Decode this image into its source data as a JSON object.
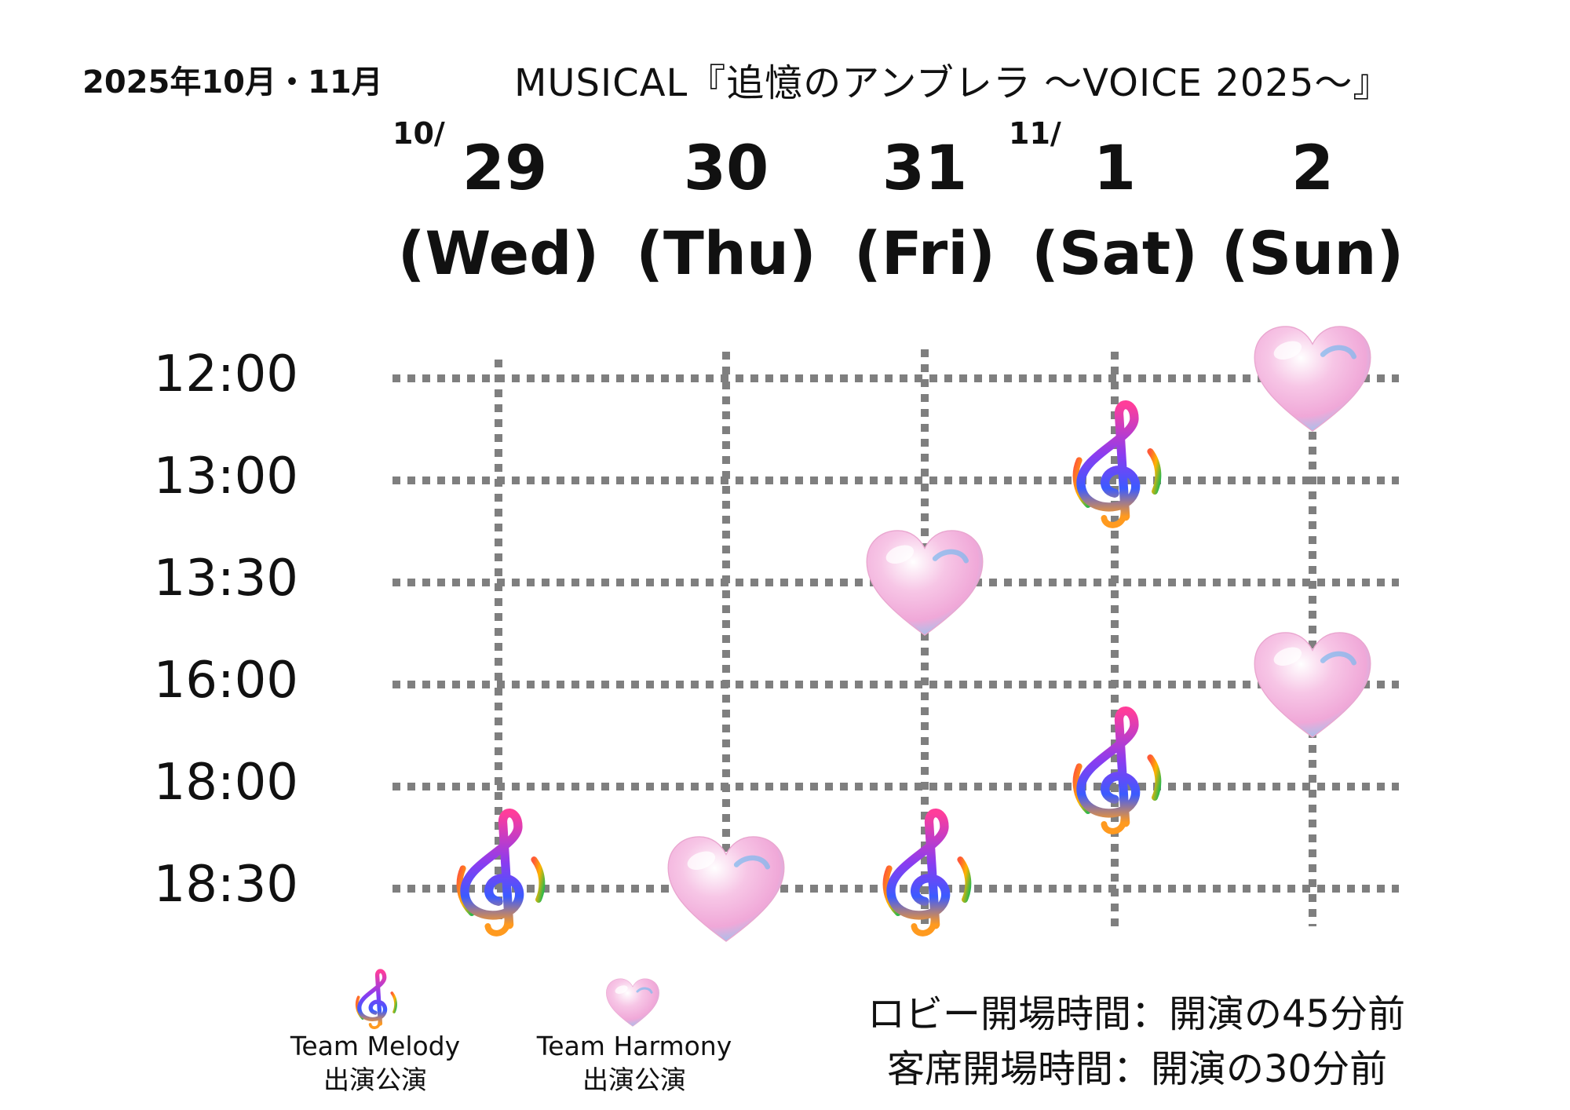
{
  "header": {
    "period": "2025年10月・11月",
    "title": "MUSICAL『追憶のアンブレラ 〜VOICE 2025〜』"
  },
  "days": [
    {
      "month": "10/",
      "day": "29",
      "weekday": "(Wed)"
    },
    {
      "month": "",
      "day": "30",
      "weekday": "(Thu)"
    },
    {
      "month": "",
      "day": "31",
      "weekday": "(Fri)"
    },
    {
      "month": "11/",
      "day": "1",
      "weekday": "(Sat)"
    },
    {
      "month": "",
      "day": "2",
      "weekday": "(Sun)"
    }
  ],
  "times": [
    "12:00",
    "13:00",
    "13:30",
    "16:00",
    "18:00",
    "18:30"
  ],
  "performances": [
    {
      "day": "(Wed)",
      "time": "18:30",
      "team": "melody"
    },
    {
      "day": "(Thu)",
      "time": "18:30",
      "team": "harmony"
    },
    {
      "day": "(Fri)",
      "time": "13:30",
      "team": "harmony"
    },
    {
      "day": "(Fri)",
      "time": "18:30",
      "team": "melody"
    },
    {
      "day": "(Sat)",
      "time": "13:00",
      "team": "melody"
    },
    {
      "day": "(Sat)",
      "time": "18:00",
      "team": "melody"
    },
    {
      "day": "(Sun)",
      "time": "12:00",
      "team": "harmony"
    },
    {
      "day": "(Sun)",
      "time": "16:00",
      "team": "harmony"
    }
  ],
  "legend": {
    "melody": {
      "icon": "treble-clef-icon",
      "label": "Team Melody",
      "sub": "出演公演"
    },
    "harmony": {
      "icon": "heart-icon",
      "label": "Team Harmony",
      "sub": "出演公演"
    }
  },
  "notes": {
    "lobby": "ロビー開場時間：開演の45分前",
    "seats": "客席開場時間：開演の30分前"
  },
  "colors": {
    "grid": "#7f7f7f",
    "clef_gradient": [
      "#ff3d9a",
      "#8a3cf0",
      "#3b5bff",
      "#ff9a1f"
    ],
    "heart_gradient": [
      "#f7c6e6",
      "#f3a6d6",
      "#8fd3f7"
    ]
  }
}
